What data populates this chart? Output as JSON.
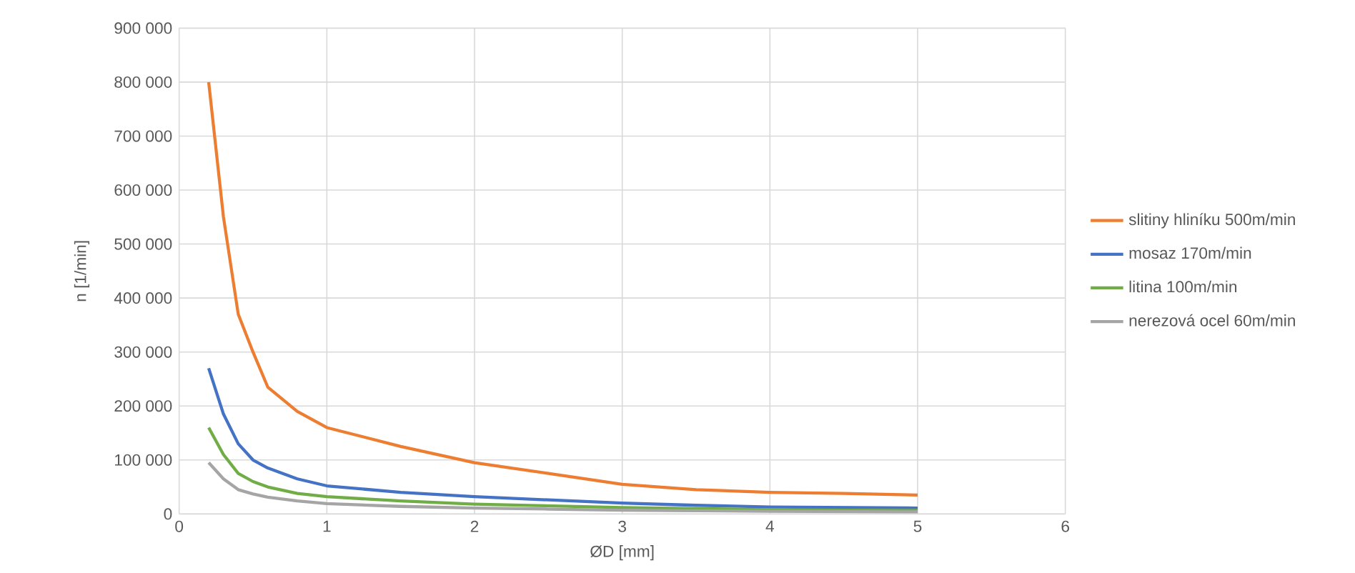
{
  "chart_data": {
    "type": "line",
    "xlabel": "ØD [mm]",
    "ylabel": "n [1/min]",
    "xlim": [
      0,
      6
    ],
    "xticks": [
      0,
      1,
      2,
      3,
      4,
      5,
      6
    ],
    "ylim": [
      0,
      900000
    ],
    "yticks": [
      {
        "value": 0,
        "label": "0"
      },
      {
        "value": 100000,
        "label": "100 000"
      },
      {
        "value": 200000,
        "label": "200 000"
      },
      {
        "value": 300000,
        "label": "300 000"
      },
      {
        "value": 400000,
        "label": "400 000"
      },
      {
        "value": 500000,
        "label": "500 000"
      },
      {
        "value": 600000,
        "label": "600 000"
      },
      {
        "value": 700000,
        "label": "700 000"
      },
      {
        "value": 800000,
        "label": "800 000"
      },
      {
        "value": 900000,
        "label": "900 000"
      }
    ],
    "grid": true,
    "legend": "right",
    "marker": "none",
    "line_style": "solid",
    "x": [
      0.2,
      0.3,
      0.4,
      0.5,
      0.6,
      0.8,
      1,
      1.5,
      2,
      2.5,
      3,
      3.5,
      4,
      4.5,
      5
    ],
    "series": [
      {
        "name": "slitiny hliníku 500m/min",
        "color": "#ed7d31",
        "values": [
          800000,
          550000,
          370000,
          300000,
          235000,
          190000,
          160000,
          125000,
          95000,
          75000,
          55000,
          45000,
          40000,
          38000,
          35000
        ]
      },
      {
        "name": "mosaz 170m/min",
        "color": "#4472c4",
        "values": [
          270000,
          185000,
          130000,
          100000,
          85000,
          65000,
          52000,
          40000,
          32000,
          26000,
          20000,
          16000,
          13000,
          12000,
          11000
        ]
      },
      {
        "name": "litina 100m/min",
        "color": "#70ad47",
        "values": [
          160000,
          110000,
          75000,
          60000,
          50000,
          38000,
          32000,
          24000,
          18000,
          15000,
          12000,
          10000,
          8000,
          7000,
          6500
        ]
      },
      {
        "name": "nerezová ocel 60m/min",
        "color": "#a5a5a5",
        "values": [
          95000,
          65000,
          45000,
          37000,
          31000,
          24000,
          19000,
          14000,
          11000,
          9000,
          7000,
          6000,
          5000,
          4500,
          4000
        ]
      }
    ]
  }
}
